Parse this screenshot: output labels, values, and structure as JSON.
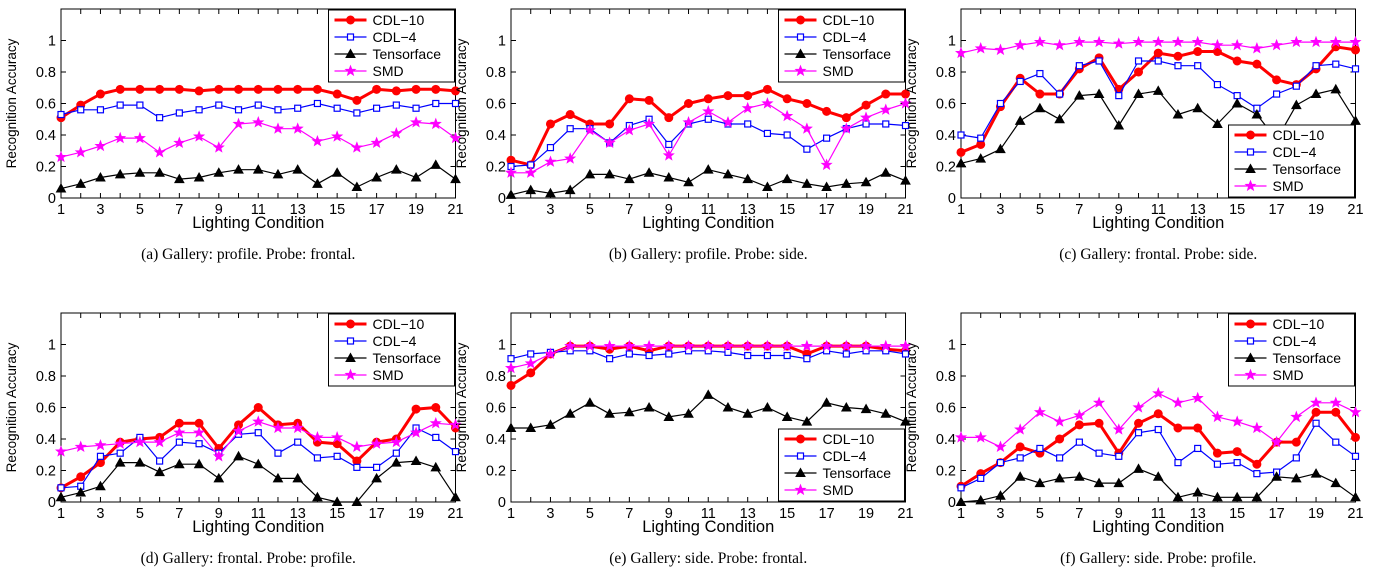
{
  "figure": {
    "series_styles": [
      {
        "name": "CDL−10",
        "color": "#ff0000",
        "marker": "circle",
        "line_width": 3
      },
      {
        "name": "CDL−4",
        "color": "#0000ff",
        "marker": "square",
        "line_width": 1.2
      },
      {
        "name": "Tensorface",
        "color": "#000000",
        "marker": "triangle",
        "line_width": 1.2
      },
      {
        "name": "SMD",
        "color": "#ff00ff",
        "marker": "star",
        "line_width": 1.2
      }
    ]
  },
  "chart_data": [
    {
      "type": "line",
      "caption": "(a) Gallery: profile. Probe: frontal.",
      "xlabel": "Lighting Condition",
      "ylabel": "Recognition Accuracy",
      "xlim": [
        1,
        21
      ],
      "ylim": [
        0,
        1.2
      ],
      "xticks": [
        "1",
        "3",
        "5",
        "7",
        "9",
        "11",
        "13",
        "15",
        "17",
        "19",
        "21"
      ],
      "yticks": [
        "0",
        "0.2",
        "0.4",
        "0.6",
        "0.8",
        "1"
      ],
      "grid": false,
      "legend_position": "top-right",
      "x": [
        1,
        2,
        3,
        4,
        5,
        6,
        7,
        8,
        9,
        10,
        11,
        12,
        13,
        14,
        15,
        16,
        17,
        18,
        19,
        20,
        21
      ],
      "series": [
        {
          "name": "CDL−10",
          "values": [
            0.51,
            0.59,
            0.66,
            0.69,
            0.69,
            0.69,
            0.69,
            0.68,
            0.69,
            0.69,
            0.69,
            0.69,
            0.69,
            0.69,
            0.66,
            0.62,
            0.69,
            0.68,
            0.69,
            0.69,
            0.68
          ]
        },
        {
          "name": "CDL−4",
          "values": [
            0.53,
            0.56,
            0.56,
            0.59,
            0.59,
            0.51,
            0.54,
            0.56,
            0.59,
            0.56,
            0.59,
            0.56,
            0.57,
            0.6,
            0.57,
            0.54,
            0.57,
            0.59,
            0.57,
            0.6,
            0.6
          ]
        },
        {
          "name": "Tensorface",
          "values": [
            0.06,
            0.09,
            0.13,
            0.15,
            0.16,
            0.16,
            0.12,
            0.13,
            0.16,
            0.18,
            0.18,
            0.15,
            0.18,
            0.09,
            0.16,
            0.07,
            0.13,
            0.18,
            0.13,
            0.21,
            0.12
          ]
        },
        {
          "name": "SMD",
          "values": [
            0.26,
            0.29,
            0.33,
            0.38,
            0.38,
            0.29,
            0.35,
            0.39,
            0.32,
            0.47,
            0.48,
            0.44,
            0.44,
            0.36,
            0.39,
            0.32,
            0.35,
            0.41,
            0.48,
            0.47,
            0.38
          ]
        }
      ]
    },
    {
      "type": "line",
      "caption": "(b) Gallery: profile. Probe: side.",
      "xlabel": "Lighting Condition",
      "ylabel": "Recognition Accuracy",
      "xlim": [
        1,
        21
      ],
      "ylim": [
        0,
        1.2
      ],
      "xticks": [
        "1",
        "3",
        "5",
        "7",
        "9",
        "11",
        "13",
        "15",
        "17",
        "19",
        "21"
      ],
      "yticks": [
        "0",
        "0.2",
        "0.4",
        "0.6",
        "0.8",
        "1"
      ],
      "grid": false,
      "legend_position": "top-right",
      "x": [
        1,
        2,
        3,
        4,
        5,
        6,
        7,
        8,
        9,
        10,
        11,
        12,
        13,
        14,
        15,
        16,
        17,
        18,
        19,
        20,
        21
      ],
      "series": [
        {
          "name": "CDL−10",
          "values": [
            0.24,
            0.21,
            0.47,
            0.53,
            0.47,
            0.47,
            0.63,
            0.62,
            0.51,
            0.6,
            0.63,
            0.65,
            0.65,
            0.69,
            0.63,
            0.6,
            0.55,
            0.51,
            0.59,
            0.66,
            0.66
          ]
        },
        {
          "name": "CDL−4",
          "values": [
            0.2,
            0.21,
            0.32,
            0.44,
            0.44,
            0.35,
            0.46,
            0.5,
            0.34,
            0.47,
            0.5,
            0.47,
            0.47,
            0.41,
            0.4,
            0.31,
            0.38,
            0.44,
            0.47,
            0.47,
            0.46
          ]
        },
        {
          "name": "Tensorface",
          "values": [
            0.02,
            0.05,
            0.03,
            0.05,
            0.15,
            0.15,
            0.12,
            0.16,
            0.13,
            0.1,
            0.18,
            0.15,
            0.12,
            0.07,
            0.12,
            0.09,
            0.07,
            0.09,
            0.1,
            0.16,
            0.11
          ]
        },
        {
          "name": "SMD",
          "values": [
            0.16,
            0.16,
            0.23,
            0.25,
            0.43,
            0.35,
            0.43,
            0.47,
            0.27,
            0.48,
            0.55,
            0.48,
            0.57,
            0.6,
            0.52,
            0.44,
            0.21,
            0.44,
            0.51,
            0.56,
            0.6
          ]
        }
      ]
    },
    {
      "type": "line",
      "caption": "(c) Gallery: frontal. Probe: side.",
      "xlabel": "Lighting Condition",
      "ylabel": "Recognition Accuracy",
      "xlim": [
        1,
        21
      ],
      "ylim": [
        0,
        1.2
      ],
      "xticks": [
        "1",
        "3",
        "5",
        "7",
        "9",
        "11",
        "13",
        "15",
        "17",
        "19",
        "21"
      ],
      "yticks": [
        "0",
        "0.2",
        "0.4",
        "0.6",
        "0.8",
        "1"
      ],
      "grid": false,
      "legend_position": "bottom-right",
      "x": [
        1,
        2,
        3,
        4,
        5,
        6,
        7,
        8,
        9,
        10,
        11,
        12,
        13,
        14,
        15,
        16,
        17,
        18,
        19,
        20,
        21
      ],
      "series": [
        {
          "name": "CDL−10",
          "values": [
            0.29,
            0.34,
            0.58,
            0.76,
            0.66,
            0.66,
            0.82,
            0.89,
            0.69,
            0.8,
            0.92,
            0.9,
            0.93,
            0.93,
            0.87,
            0.85,
            0.75,
            0.72,
            0.82,
            0.96,
            0.94
          ]
        },
        {
          "name": "CDL−4",
          "values": [
            0.4,
            0.38,
            0.6,
            0.74,
            0.79,
            0.66,
            0.84,
            0.87,
            0.65,
            0.87,
            0.87,
            0.84,
            0.84,
            0.72,
            0.65,
            0.57,
            0.66,
            0.71,
            0.84,
            0.85,
            0.82
          ]
        },
        {
          "name": "Tensorface",
          "values": [
            0.22,
            0.25,
            0.31,
            0.49,
            0.57,
            0.5,
            0.65,
            0.66,
            0.46,
            0.66,
            0.68,
            0.53,
            0.57,
            0.47,
            0.6,
            0.53,
            0.37,
            0.59,
            0.66,
            0.69,
            0.49
          ]
        },
        {
          "name": "SMD",
          "values": [
            0.92,
            0.95,
            0.94,
            0.97,
            0.99,
            0.97,
            0.99,
            0.99,
            0.98,
            0.99,
            0.99,
            0.99,
            0.99,
            0.97,
            0.97,
            0.95,
            0.97,
            0.99,
            0.99,
            0.99,
            0.99
          ]
        }
      ]
    },
    {
      "type": "line",
      "caption": "(d) Gallery: frontal. Probe: profile.",
      "xlabel": "Lighting Condition",
      "ylabel": "Recognition Accuracy",
      "xlim": [
        1,
        21
      ],
      "ylim": [
        0,
        1.2
      ],
      "xticks": [
        "1",
        "3",
        "5",
        "7",
        "9",
        "11",
        "13",
        "15",
        "17",
        "19",
        "21"
      ],
      "yticks": [
        "0",
        "0.2",
        "0.4",
        "0.6",
        "0.8",
        "1"
      ],
      "grid": false,
      "legend_position": "top-right",
      "x": [
        1,
        2,
        3,
        4,
        5,
        6,
        7,
        8,
        9,
        10,
        11,
        12,
        13,
        14,
        15,
        16,
        17,
        18,
        19,
        20,
        21
      ],
      "series": [
        {
          "name": "CDL−10",
          "values": [
            0.09,
            0.16,
            0.25,
            0.38,
            0.4,
            0.41,
            0.5,
            0.5,
            0.34,
            0.49,
            0.6,
            0.49,
            0.5,
            0.38,
            0.37,
            0.26,
            0.38,
            0.4,
            0.59,
            0.6,
            0.47
          ]
        },
        {
          "name": "CDL−4",
          "values": [
            0.09,
            0.1,
            0.29,
            0.31,
            0.41,
            0.26,
            0.38,
            0.37,
            0.31,
            0.43,
            0.44,
            0.31,
            0.38,
            0.28,
            0.29,
            0.22,
            0.22,
            0.31,
            0.47,
            0.41,
            0.32
          ]
        },
        {
          "name": "Tensorface",
          "values": [
            0.03,
            0.06,
            0.1,
            0.25,
            0.25,
            0.19,
            0.24,
            0.24,
            0.15,
            0.29,
            0.24,
            0.15,
            0.15,
            0.03,
            0.0,
            0.0,
            0.15,
            0.25,
            0.26,
            0.22,
            0.03
          ]
        },
        {
          "name": "SMD",
          "values": [
            0.32,
            0.35,
            0.36,
            0.37,
            0.38,
            0.38,
            0.44,
            0.44,
            0.29,
            0.45,
            0.51,
            0.47,
            0.47,
            0.41,
            0.41,
            0.35,
            0.37,
            0.38,
            0.44,
            0.5,
            0.49
          ]
        }
      ]
    },
    {
      "type": "line",
      "caption": "(e) Gallery: side. Probe: frontal.",
      "xlabel": "Lighting Condition",
      "ylabel": "Recognition Accuracy",
      "xlim": [
        1,
        21
      ],
      "ylim": [
        0,
        1.2
      ],
      "xticks": [
        "1",
        "3",
        "5",
        "7",
        "9",
        "11",
        "13",
        "15",
        "17",
        "19",
        "21"
      ],
      "yticks": [
        "0",
        "0.2",
        "0.4",
        "0.6",
        "0.8",
        "1"
      ],
      "grid": false,
      "legend_position": "bottom-right",
      "x": [
        1,
        2,
        3,
        4,
        5,
        6,
        7,
        8,
        9,
        10,
        11,
        12,
        13,
        14,
        15,
        16,
        17,
        18,
        19,
        20,
        21
      ],
      "series": [
        {
          "name": "CDL−10",
          "values": [
            0.74,
            0.82,
            0.94,
            0.99,
            0.99,
            0.97,
            0.99,
            0.96,
            0.99,
            0.99,
            0.99,
            0.99,
            0.99,
            0.99,
            0.99,
            0.94,
            0.99,
            0.99,
            0.99,
            0.97,
            0.96
          ]
        },
        {
          "name": "CDL−4",
          "values": [
            0.91,
            0.94,
            0.95,
            0.96,
            0.96,
            0.91,
            0.94,
            0.93,
            0.94,
            0.96,
            0.96,
            0.95,
            0.93,
            0.93,
            0.93,
            0.91,
            0.96,
            0.94,
            0.96,
            0.96,
            0.94
          ]
        },
        {
          "name": "Tensorface",
          "values": [
            0.47,
            0.47,
            0.49,
            0.56,
            0.63,
            0.56,
            0.57,
            0.6,
            0.54,
            0.56,
            0.68,
            0.6,
            0.56,
            0.6,
            0.54,
            0.51,
            0.63,
            0.6,
            0.59,
            0.56,
            0.51
          ]
        },
        {
          "name": "SMD",
          "values": [
            0.85,
            0.88,
            0.94,
            0.99,
            0.99,
            0.99,
            0.99,
            0.99,
            0.99,
            0.99,
            0.99,
            0.99,
            0.99,
            0.99,
            0.99,
            0.99,
            0.99,
            0.99,
            0.99,
            0.99,
            0.99
          ]
        }
      ]
    },
    {
      "type": "line",
      "caption": "(f) Gallery: side. Probe: profile.",
      "xlabel": "Lighting Condition",
      "ylabel": "Recognition Accuracy",
      "xlim": [
        1,
        21
      ],
      "ylim": [
        0,
        1.2
      ],
      "xticks": [
        "1",
        "3",
        "5",
        "7",
        "9",
        "11",
        "13",
        "15",
        "17",
        "19",
        "21"
      ],
      "yticks": [
        "0",
        "0.2",
        "0.4",
        "0.6",
        "0.8",
        "1"
      ],
      "grid": false,
      "legend_position": "top-right",
      "x": [
        1,
        2,
        3,
        4,
        5,
        6,
        7,
        8,
        9,
        10,
        11,
        12,
        13,
        14,
        15,
        16,
        17,
        18,
        19,
        20,
        21
      ],
      "series": [
        {
          "name": "CDL−10",
          "values": [
            0.1,
            0.18,
            0.25,
            0.35,
            0.31,
            0.4,
            0.49,
            0.5,
            0.31,
            0.5,
            0.56,
            0.47,
            0.47,
            0.31,
            0.32,
            0.24,
            0.38,
            0.38,
            0.57,
            0.57,
            0.41
          ]
        },
        {
          "name": "CDL−4",
          "values": [
            0.09,
            0.15,
            0.25,
            0.28,
            0.34,
            0.28,
            0.38,
            0.31,
            0.29,
            0.44,
            0.46,
            0.25,
            0.34,
            0.24,
            0.25,
            0.18,
            0.19,
            0.28,
            0.5,
            0.38,
            0.29
          ]
        },
        {
          "name": "Tensorface",
          "values": [
            0.0,
            0.01,
            0.04,
            0.16,
            0.12,
            0.15,
            0.16,
            0.12,
            0.12,
            0.21,
            0.16,
            0.03,
            0.06,
            0.03,
            0.03,
            0.03,
            0.16,
            0.15,
            0.18,
            0.12,
            0.03
          ]
        },
        {
          "name": "SMD",
          "values": [
            0.41,
            0.41,
            0.35,
            0.46,
            0.57,
            0.51,
            0.55,
            0.63,
            0.46,
            0.6,
            0.69,
            0.63,
            0.66,
            0.54,
            0.51,
            0.47,
            0.38,
            0.54,
            0.63,
            0.63,
            0.57
          ]
        }
      ]
    }
  ]
}
